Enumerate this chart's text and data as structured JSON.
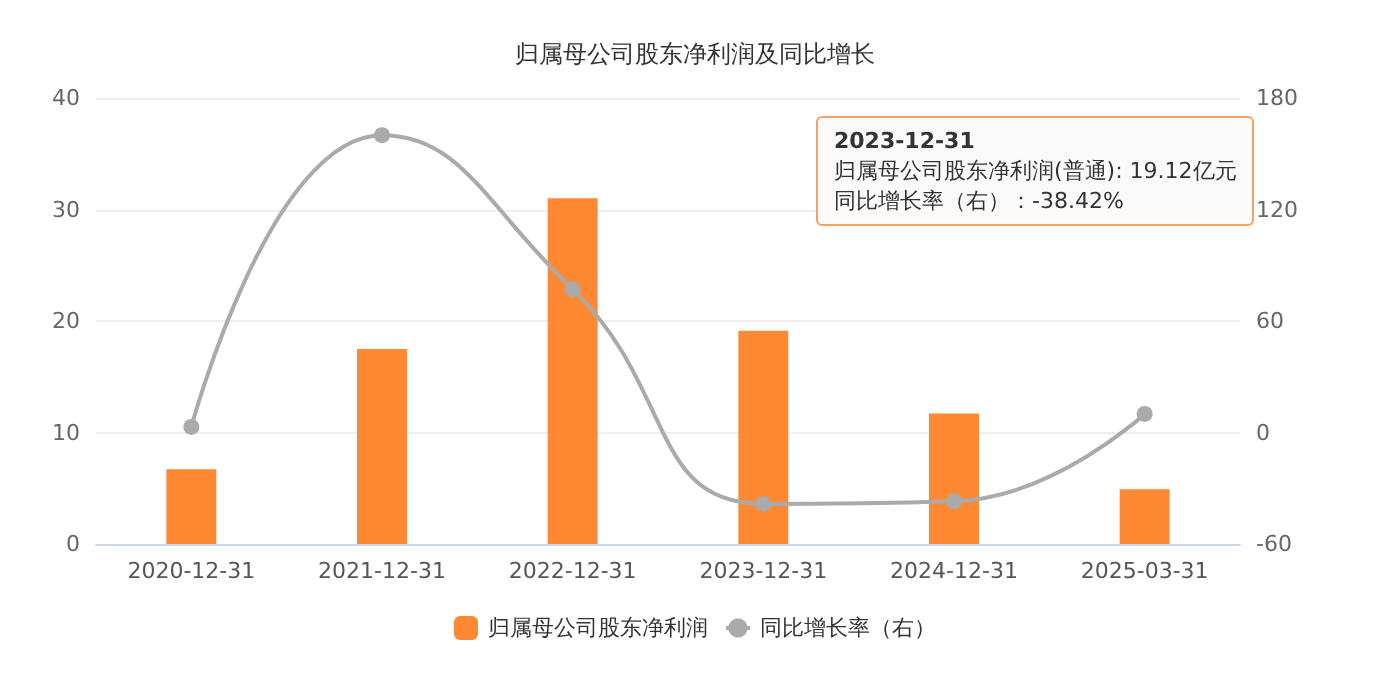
{
  "chart_data": {
    "type": "bar",
    "title": "归属母公司股东净利润及同比增长",
    "categories": [
      "2020-12-31",
      "2021-12-31",
      "2022-12-31",
      "2023-12-31",
      "2024-12-31",
      "2025-03-31"
    ],
    "series": [
      {
        "name": "归属母公司股东净利润",
        "color": "#ff8833",
        "values": [
          6.7,
          17.5,
          31.0,
          19.12,
          11.7,
          4.9
        ]
      },
      {
        "name": "同比增长率（右）",
        "type": "line",
        "axis": "y2",
        "color": "#aaaaaa",
        "marker": "circle",
        "values": [
          3,
          160,
          77,
          -38.42,
          -37,
          10
        ]
      }
    ],
    "ylim": [
      0,
      40
    ],
    "yticks": [
      0,
      10,
      20,
      30,
      40
    ],
    "y2lim": [
      -60,
      180
    ],
    "y2ticks": [
      -60,
      0,
      60,
      120,
      180
    ],
    "grid": "y",
    "legend": "bottom",
    "annotations": [
      "2023-12-31",
      "归属母公司股东净利润(普通): 19.12亿元",
      "同比增长率（右）：-38.42%"
    ]
  }
}
